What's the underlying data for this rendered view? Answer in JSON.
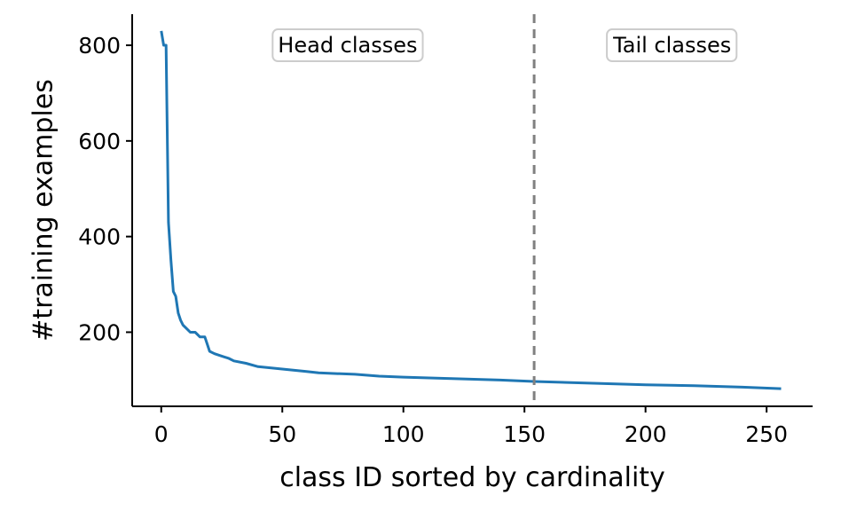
{
  "chart_data": {
    "type": "line",
    "title": "",
    "xlabel": "class ID sorted by cardinality",
    "ylabel": "#training examples",
    "xlim": [
      -12,
      269
    ],
    "ylim": [
      45,
      865
    ],
    "xticks": [
      0,
      50,
      100,
      150,
      200,
      250
    ],
    "yticks": [
      200,
      400,
      600,
      800
    ],
    "grid": false,
    "line_color": "#1f77b4",
    "divider": {
      "x": 154,
      "style": "dashed",
      "color": "#808080"
    },
    "annotations": [
      {
        "text": "Head classes",
        "x": 77,
        "y": 800
      },
      {
        "text": "Tail classes",
        "x": 211,
        "y": 800
      }
    ],
    "series": [
      {
        "x": [
          0,
          1,
          2,
          3,
          4,
          5,
          6,
          7,
          8,
          9,
          10,
          11,
          12,
          14,
          16,
          18,
          19,
          20,
          22,
          25,
          28,
          30,
          35,
          40,
          50,
          60,
          65,
          80,
          90,
          100,
          120,
          140,
          154,
          180,
          200,
          220,
          240,
          256
        ],
        "y": [
          830,
          800,
          800,
          430,
          350,
          285,
          275,
          240,
          225,
          215,
          210,
          205,
          200,
          200,
          190,
          190,
          175,
          160,
          155,
          150,
          145,
          140,
          135,
          128,
          123,
          118,
          115,
          112,
          108,
          106,
          103,
          100,
          97,
          93,
          90,
          88,
          85,
          82
        ]
      }
    ]
  }
}
